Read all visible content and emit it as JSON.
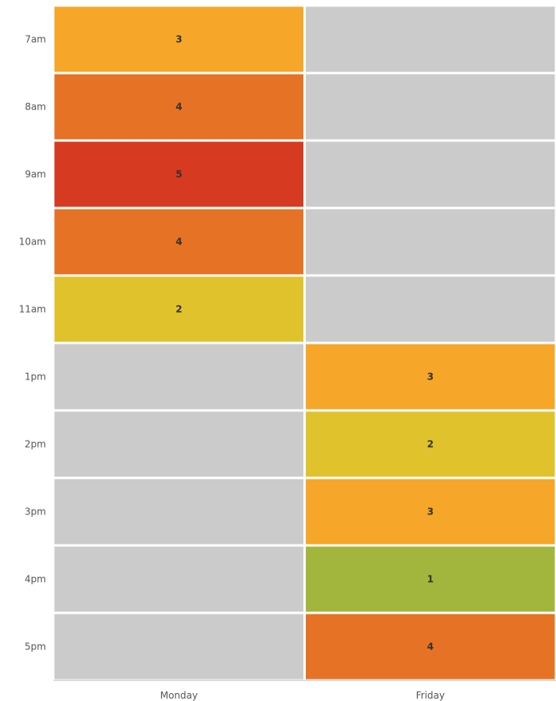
{
  "chart_data": {
    "type": "heatmap",
    "title": "",
    "xlabel": "",
    "ylabel": "",
    "x_categories": [
      "Monday",
      "Friday"
    ],
    "y_categories": [
      "7am",
      "8am",
      "9am",
      "10am",
      "11am",
      "1pm",
      "2pm",
      "3pm",
      "4pm",
      "5pm"
    ],
    "values": [
      [
        3,
        null
      ],
      [
        4,
        null
      ],
      [
        5,
        null
      ],
      [
        4,
        null
      ],
      [
        2,
        null
      ],
      [
        null,
        3
      ],
      [
        null,
        2
      ],
      [
        null,
        3
      ],
      [
        null,
        1
      ],
      [
        null,
        4
      ]
    ],
    "color_scale": {
      "1": "#a2b53c",
      "2": "#e0c22d",
      "3": "#f6a628",
      "4": "#e67226",
      "5": "#d63a20"
    },
    "empty_color": "#cbcbcb",
    "grid": false,
    "legend": "none"
  }
}
